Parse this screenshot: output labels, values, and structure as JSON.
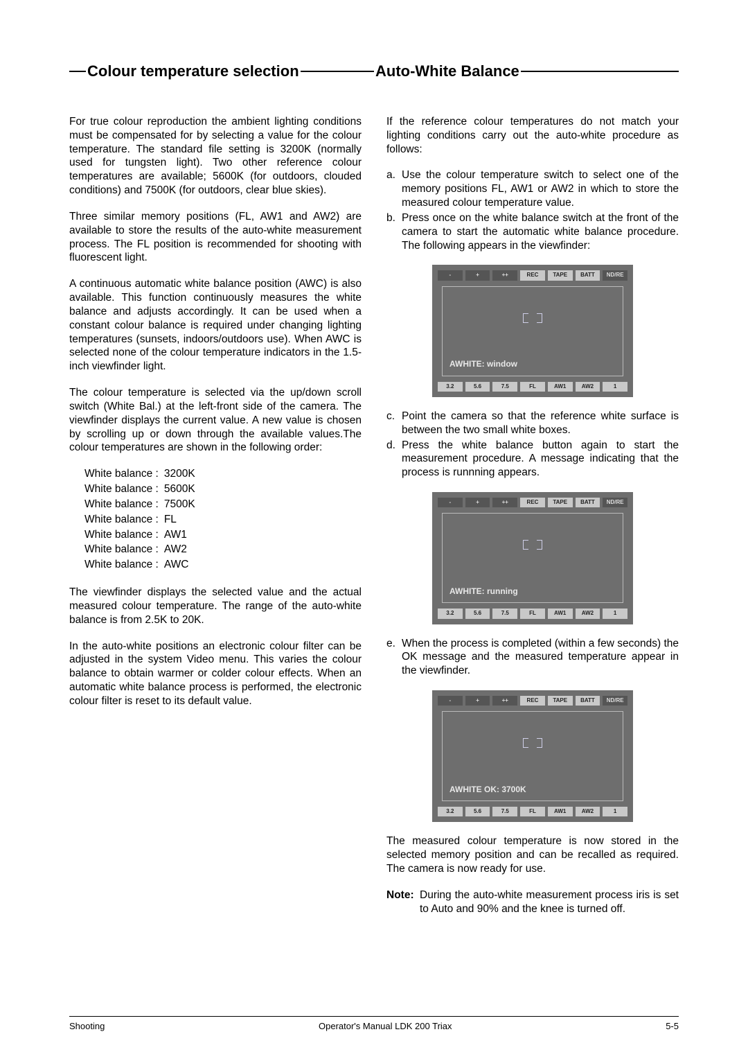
{
  "headings": {
    "left": "Colour  temperature  selection",
    "right": "Auto-White  Balance"
  },
  "left_col": {
    "p1": "For true colour reproduction the ambient lighting conditions must be compensated for by selecting a value for the colour temperature. The standard file setting is 3200K (normally used for tungsten light). Two other reference colour temperatures are available; 5600K (for outdoors, clouded conditions) and 7500K (for outdoors, clear blue skies).",
    "p2": "Three similar memory positions (FL, AW1 and AW2) are available to store the results of the auto-white measurement process. The FL position is recommended for shooting with fluorescent light.",
    "p3": "A continuous automatic white balance position (AWC) is also available. This function continuously measures the white balance and adjusts accordingly. It can be used when a constant colour balance is required under changing lighting temperatures (sunsets, indoors/outdoors use). When AWC is selected none of the colour temperature indicators in the 1.5-inch viewfinder light.",
    "p4": "The colour temperature is selected via the up/down scroll switch (White Bal.) at the left-front side of the camera. The viewfinder displays the current value. A new value is chosen by scrolling up or down through the available values.The colour temperatures are shown in the following order:",
    "wb_rows": [
      {
        "label": "White balance :",
        "value": "3200K"
      },
      {
        "label": "White balance :",
        "value": "5600K"
      },
      {
        "label": "White balance :",
        "value": "7500K"
      },
      {
        "label": "White balance :",
        "value": "FL"
      },
      {
        "label": "White balance :",
        "value": "AW1"
      },
      {
        "label": "White balance :",
        "value": "AW2"
      },
      {
        "label": "White balance :",
        "value": "AWC"
      }
    ],
    "p5": "The viewfinder displays the selected value and the actual measured colour temperature. The range of the auto-white balance is from 2.5K to 20K.",
    "p6": "In the auto-white positions an electronic colour filter can be adjusted in the system Video menu. This varies the colour balance to obtain warmer or colder colour effects. When an automatic white balance process is performed, the electronic colour filter is reset to its default value."
  },
  "right_col": {
    "intro": "If the reference colour temperatures do not match your lighting conditions carry out the auto-white procedure as follows:",
    "step_a": "Use the colour temperature switch to select one of the memory positions FL, AW1 or AW2 in which to store the measured colour temperature value.",
    "step_b": "Press once on the white balance switch at the front of the camera to start the automatic white balance procedure. The following appears in the viewfinder:",
    "step_c": "Point the camera so that the reference white surface is between the two small white boxes.",
    "step_d": "Press the white balance button again to start the measurement procedure. A message indicating that the process is runnning appears.",
    "step_e": "When the process is completed (within a few seconds) the OK message and the measured temperature appear in the viewfinder.",
    "after": "The measured colour temperature is now stored in the selected memory position and can be recalled as required. The camera is now ready for use.",
    "note_label": "Note",
    "note_text": "During the auto-white measurement process iris is set to Auto and 90% and the knee is turned off."
  },
  "viewfinder": {
    "top_row": [
      "-",
      "+",
      "++",
      "REC",
      "TAPE",
      "BATT",
      "ND/RE"
    ],
    "bottom_row": [
      "3.2",
      "5.6",
      "7.5",
      "FL",
      "AW1",
      "AW2",
      "1"
    ],
    "msg1": "AWHITE: window",
    "msg2": "AWHITE: running",
    "msg3": "AWHITE OK:  3700K",
    "colors": {
      "bg": "#6e6e6e",
      "tag_bg": "#c9c9c9",
      "tag_dark": "#555555",
      "border": "#bbbbbb",
      "bracket": "#cfcfe8",
      "text": "#e8e8e8"
    }
  },
  "markers": {
    "a": "a.",
    "b": "b.",
    "c": "c.",
    "d": "d.",
    "e": "e."
  },
  "footer": {
    "left": "Shooting",
    "center": "Operator's Manual LDK 200 Triax",
    "right": "5-5"
  }
}
